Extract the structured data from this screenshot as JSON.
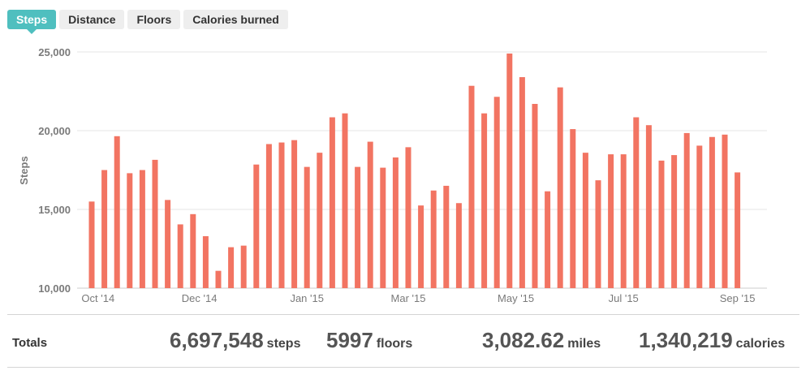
{
  "tabs": [
    {
      "label": "Steps",
      "active": true
    },
    {
      "label": "Distance",
      "active": false
    },
    {
      "label": "Floors",
      "active": false
    },
    {
      "label": "Calories burned",
      "active": false
    }
  ],
  "colors": {
    "accent": "#4fbfbf",
    "bar": "#f27462",
    "grid": "#e6e6e6"
  },
  "chart_data": {
    "type": "bar",
    "title": "",
    "ylabel": "Steps",
    "xlabel": "",
    "ylim": [
      10000,
      25000
    ],
    "yticks": [
      10000,
      15000,
      20000,
      25000
    ],
    "ytick_labels": [
      "10,000",
      "15,000",
      "20,000",
      "25,000"
    ],
    "xtick_labels": [
      {
        "label": "Oct '14",
        "index": 0.5
      },
      {
        "label": "Dec '14",
        "index": 8.5
      },
      {
        "label": "Jan '15",
        "index": 17
      },
      {
        "label": "Mar '15",
        "index": 25
      },
      {
        "label": "May '15",
        "index": 33.5
      },
      {
        "label": "Jul '15",
        "index": 42
      },
      {
        "label": "Sep '15",
        "index": 51
      }
    ],
    "grid": true,
    "series": [
      {
        "values": [
          15500,
          17500,
          19650,
          17300,
          17500,
          18150,
          15600,
          14050,
          14700,
          13300,
          11100,
          12600,
          12700,
          17850,
          19150,
          19250,
          19400,
          17700,
          18600,
          20850,
          21100,
          17700,
          19300,
          17650,
          18300,
          18950,
          15250,
          16200,
          16500,
          15400,
          22850,
          21100,
          22150,
          24900,
          23400,
          21700,
          16150,
          22750,
          20100,
          18600,
          16850,
          18500,
          18500,
          20850,
          20350,
          18100,
          18450,
          19850,
          19050,
          19600,
          19750,
          17350
        ]
      }
    ]
  },
  "totals": {
    "label": "Totals",
    "steps": {
      "value": "6,697,548",
      "unit": "steps"
    },
    "floors": {
      "value": "5997",
      "unit": "floors"
    },
    "miles": {
      "value": "3,082.62",
      "unit": "miles"
    },
    "calories": {
      "value": "1,340,219",
      "unit": "calories"
    }
  }
}
